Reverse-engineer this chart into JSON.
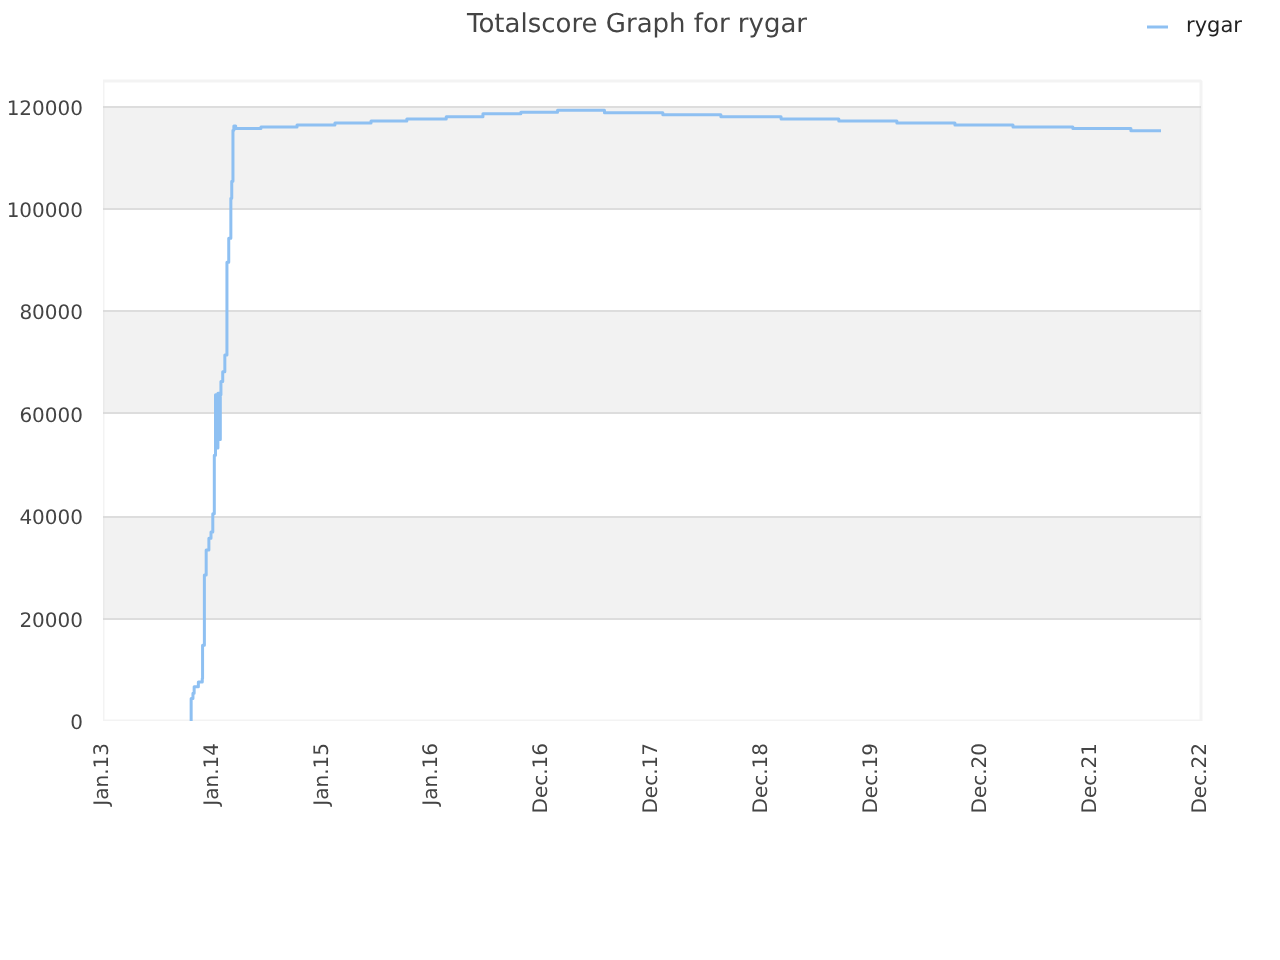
{
  "chart_data": {
    "type": "step",
    "title": "Totalscore Graph for rygar",
    "x": [
      "2013-10-20",
      "2013-10-21",
      "2013-10-27",
      "2013-10-31",
      "2013-11-14",
      "2013-11-27",
      "2013-11-28",
      "2013-12-04",
      "2013-12-10",
      "2013-12-19",
      "2013-12-26",
      "2014-01-01",
      "2014-01-06",
      "2014-01-10",
      "2014-01-14",
      "2014-01-18",
      "2014-01-22",
      "2014-01-26",
      "2014-01-28",
      "2014-02-03",
      "2014-02-10",
      "2014-02-17",
      "2014-02-23",
      "2014-03-02",
      "2014-03-05",
      "2014-03-09",
      "2014-03-12",
      "2014-03-18",
      "2014-06-10",
      "2014-10-08",
      "2015-02-11",
      "2015-06-11",
      "2015-10-08",
      "2016-02-16",
      "2016-06-17",
      "2016-10-21",
      "2017-02-20",
      "2017-07-26",
      "2018-02-05",
      "2018-08-17",
      "2019-03-05",
      "2019-09-13",
      "2020-03-24",
      "2020-10-03",
      "2021-04-14",
      "2021-10-30",
      "2022-05-11",
      "2022-08-19"
    ],
    "series": [
      {
        "name": "rygar",
        "color": "#8ec0f2",
        "values": [
          0,
          4400,
          5400,
          6700,
          7600,
          8300,
          14800,
          28500,
          33400,
          35700,
          36900,
          40500,
          51900,
          63700,
          53300,
          64000,
          55000,
          63700,
          66300,
          68200,
          71500,
          89600,
          94300,
          102100,
          105400,
          115400,
          116200,
          115700,
          116000,
          116400,
          116800,
          117200,
          117600,
          118000,
          118600,
          118900,
          119300,
          118800,
          118400,
          118000,
          117600,
          117200,
          116800,
          116400,
          116000,
          115700,
          115300,
          115300
        ]
      }
    ],
    "xlim": [
      "2013-01-01",
      "2022-12-30"
    ],
    "xticks": [
      {
        "value": "2013-01-01",
        "label": "Jan.13"
      },
      {
        "value": "2014-01-01",
        "label": "Jan.14"
      },
      {
        "value": "2015-01-01",
        "label": "Jan.15"
      },
      {
        "value": "2016-01-01",
        "label": "Jan.16"
      },
      {
        "value": "2016-12-31",
        "label": "Dec.16"
      },
      {
        "value": "2017-12-31",
        "label": "Dec.17"
      },
      {
        "value": "2018-12-31",
        "label": "Dec.18"
      },
      {
        "value": "2019-12-31",
        "label": "Dec.19"
      },
      {
        "value": "2020-12-30",
        "label": "Dec.20"
      },
      {
        "value": "2021-12-30",
        "label": "Dec.21"
      },
      {
        "value": "2022-12-30",
        "label": "Dec.22"
      }
    ],
    "ylim": [
      0,
      125000
    ],
    "yticks": [
      0,
      20000,
      40000,
      60000,
      80000,
      100000,
      120000
    ],
    "grid": "y",
    "legend": "top right"
  }
}
